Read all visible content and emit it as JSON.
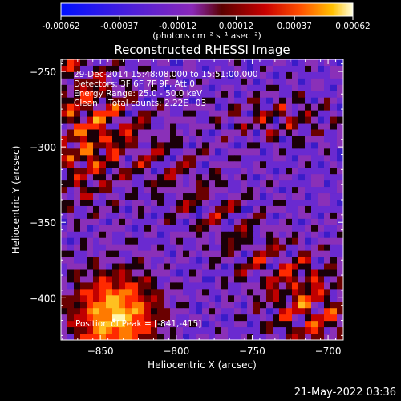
{
  "chart_data": {
    "type": "heatmap",
    "title": "Reconstructed RHESSI Image",
    "xlabel": "Heliocentric X (arcsec)",
    "ylabel": "Heliocentric Y (arcsec)",
    "xlim": [
      -876,
      -690
    ],
    "ylim": [
      -428,
      -242
    ],
    "x_ticks": [
      -850,
      -800,
      -750,
      -700
    ],
    "y_ticks": [
      -400,
      -350,
      -300,
      -250
    ],
    "colorbar": {
      "range": [
        -0.00062,
        0.00062
      ],
      "ticks": [
        "-0.00062",
        "-0.00037",
        "-0.00012",
        "0.00012",
        "0.00037",
        "0.00062"
      ],
      "unit_label": "(photons cm⁻² s⁻¹ asec⁻²)"
    },
    "annotations": [
      "29-Dec-2014 15:48:08.000 to 15:51:00.000",
      "Detectors: 3F 6F 7F 9F, Att 0",
      "Energy Range: 25.0 - 50.0 keV",
      "Clean    Total counts: 2.22E+03"
    ],
    "peak_label": "Position of Peak = [-841,-415]",
    "peak_position": [
      -841,
      -415
    ],
    "grid": false
  },
  "footer": {
    "date": "21-May-2022 03:36"
  },
  "colors": {
    "background": "#000000",
    "foreground": "#ffffff"
  }
}
